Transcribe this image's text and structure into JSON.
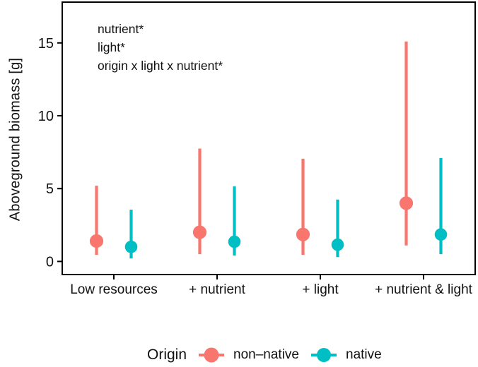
{
  "legend": {
    "title": "Origin"
  },
  "chart_data": {
    "type": "pointrange",
    "title": "",
    "xlabel": "",
    "ylabel": "Aboveground biomass [g]",
    "categories": [
      "Low resources",
      "+ nutrient",
      "+ light",
      "+ nutrient & light"
    ],
    "yticks": [
      "0",
      "5",
      "10",
      "15"
    ],
    "ylim": [
      -0.9,
      17.8
    ],
    "grid": "off",
    "legend_position": "bottom",
    "annotations": [
      "nutrient*",
      "light*",
      "origin x light x nutrient*"
    ],
    "series": [
      {
        "name": "non–native",
        "color": "#F8766D",
        "points": [
          {
            "category": "Low resources",
            "mean": 1.4,
            "lo": 0.45,
            "hi": 5.2
          },
          {
            "category": "+ nutrient",
            "mean": 2.0,
            "lo": 0.5,
            "hi": 7.75
          },
          {
            "category": "+ light",
            "mean": 1.85,
            "lo": 0.45,
            "hi": 7.05
          },
          {
            "category": "+ nutrient & light",
            "mean": 4.0,
            "lo": 1.1,
            "hi": 15.1
          }
        ]
      },
      {
        "name": "native",
        "color": "#00BFC4",
        "points": [
          {
            "category": "Low resources",
            "mean": 1.0,
            "lo": 0.2,
            "hi": 3.55
          },
          {
            "category": "+ nutrient",
            "mean": 1.35,
            "lo": 0.4,
            "hi": 5.15
          },
          {
            "category": "+ light",
            "mean": 1.15,
            "lo": 0.3,
            "hi": 4.25
          },
          {
            "category": "+ nutrient & light",
            "mean": 1.85,
            "lo": 0.5,
            "hi": 7.1
          }
        ]
      }
    ]
  }
}
